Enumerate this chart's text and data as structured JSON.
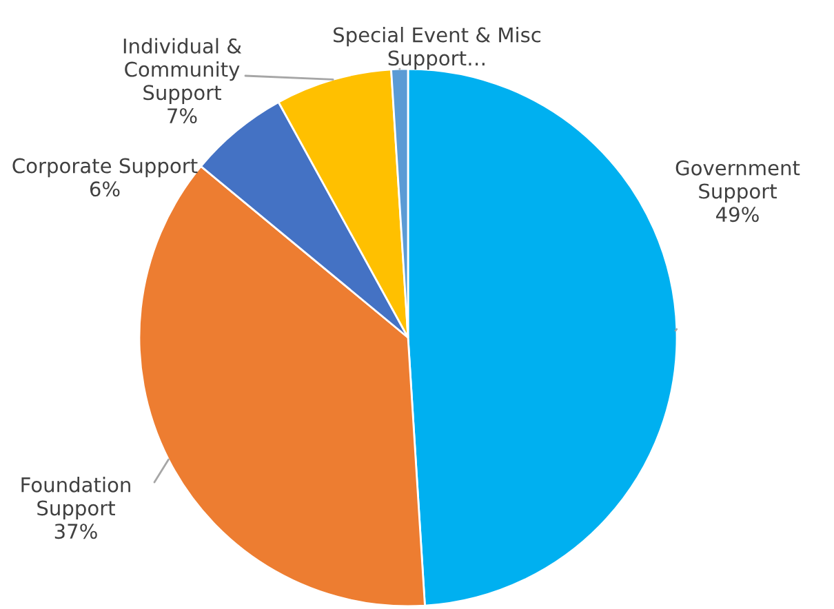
{
  "chart_data": {
    "type": "pie",
    "categories": [
      "Government\nSupport",
      "Foundation\nSupport",
      "Corporate Support",
      "Individual &\nCommunity\nSupport",
      "Special Event & Misc\nSupport…"
    ],
    "values": [
      49,
      37,
      6,
      7,
      1
    ],
    "value_labels": [
      "49%",
      "37%",
      "6%",
      "7%",
      null
    ],
    "colors": [
      "#00b0f0",
      "#ed7d31",
      "#4472c4",
      "#ffc000",
      "#5b9bd5"
    ]
  }
}
